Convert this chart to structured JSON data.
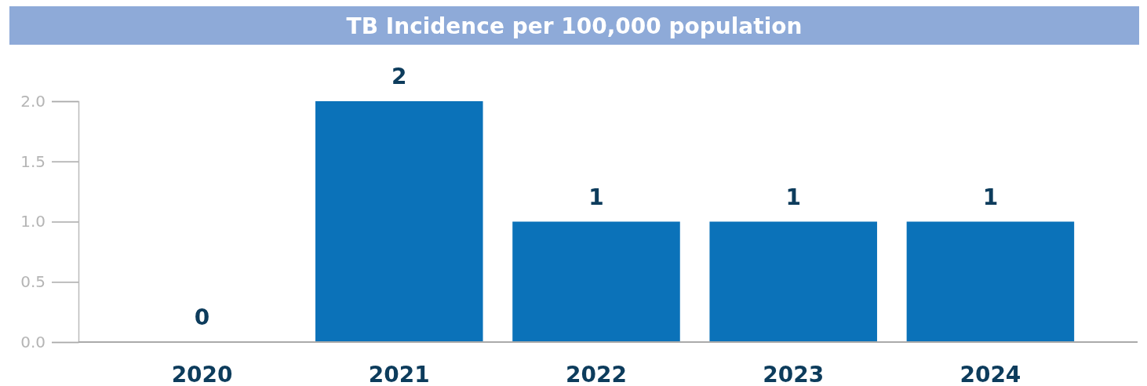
{
  "chart_data": {
    "type": "bar",
    "title": "TB Incidence per 100,000 population",
    "categories": [
      "2020",
      "2021",
      "2022",
      "2023",
      "2024"
    ],
    "values": [
      0,
      2,
      1,
      1,
      1
    ],
    "color": "#0b72b9",
    "ylim": [
      0,
      2
    ],
    "yticks": [
      {
        "value": 0,
        "label": "0.0"
      },
      {
        "value": 0.5,
        "label": "0.5"
      },
      {
        "value": 1,
        "label": "1.0"
      },
      {
        "value": 1.5,
        "label": "1.5"
      },
      {
        "value": 2,
        "label": "2.0"
      }
    ],
    "data_labels": true
  }
}
